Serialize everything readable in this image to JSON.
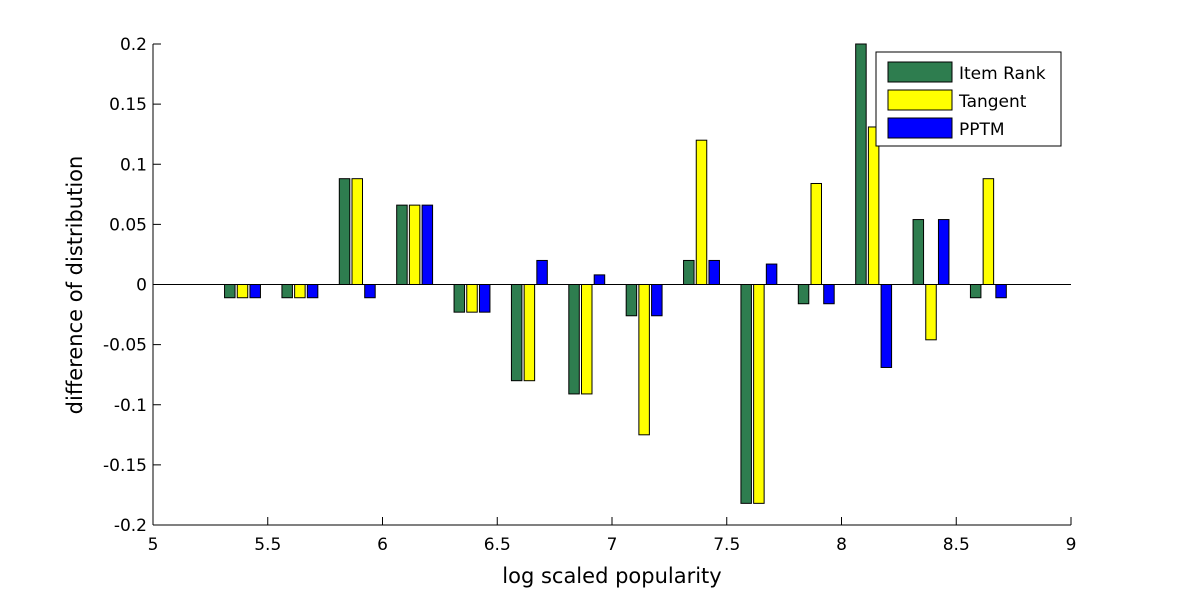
{
  "colors": {
    "item_rank": "#2e7d4f",
    "tangent": "#ffff00",
    "pptm": "#0000ff",
    "axis": "#000000",
    "background": "#ffffff"
  },
  "chart_data": {
    "type": "bar",
    "title": "",
    "xlabel": "log scaled popularity",
    "ylabel": "difference of distribution",
    "xlim": [
      5,
      9
    ],
    "ylim": [
      -0.2,
      0.2
    ],
    "grid": false,
    "legend_position": "top-right",
    "x_ticks": [
      5,
      5.5,
      6,
      6.5,
      7,
      7.5,
      8,
      8.5,
      9
    ],
    "x_tick_labels": [
      "5",
      "5.5",
      "6",
      "6.5",
      "7",
      "7.5",
      "8",
      "8.5",
      "9"
    ],
    "y_ticks": [
      -0.2,
      -0.15,
      -0.1,
      -0.05,
      0,
      0.05,
      0.1,
      0.15,
      0.2
    ],
    "y_tick_labels": [
      "-0.2",
      "-0.15",
      "-0.1",
      "-0.05",
      "0",
      "0.05",
      "0.1",
      "0.15",
      "0.2"
    ],
    "x": [
      5.39,
      5.64,
      5.89,
      6.14,
      6.39,
      6.64,
      6.89,
      7.14,
      7.39,
      7.64,
      7.89,
      8.14,
      8.39,
      8.64
    ],
    "series": [
      {
        "name": "Item Rank",
        "color_key": "item_rank",
        "values": [
          -0.011,
          -0.011,
          0.088,
          0.066,
          -0.023,
          -0.08,
          -0.091,
          -0.026,
          0.02,
          -0.182,
          -0.016,
          0.2,
          0.054,
          -0.011
        ]
      },
      {
        "name": "Tangent",
        "color_key": "tangent",
        "values": [
          -0.011,
          -0.011,
          0.088,
          0.066,
          -0.023,
          -0.08,
          -0.091,
          -0.125,
          0.12,
          -0.182,
          0.084,
          0.131,
          -0.046,
          0.088
        ]
      },
      {
        "name": "PPTM",
        "color_key": "pptm",
        "values": [
          -0.011,
          -0.011,
          -0.011,
          0.066,
          -0.023,
          0.02,
          0.008,
          -0.026,
          0.02,
          0.017,
          -0.016,
          -0.069,
          0.054,
          -0.011
        ]
      }
    ]
  }
}
